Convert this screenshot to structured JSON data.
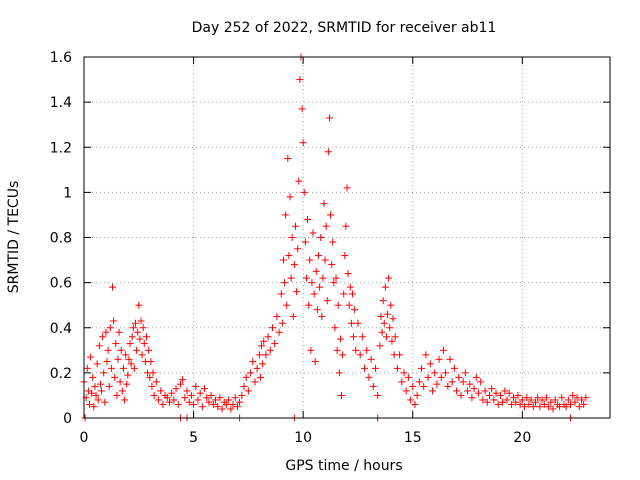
{
  "chart_data": {
    "type": "scatter",
    "title": "Day 252 of 2022, SRMTID for receiver ab11",
    "xlabel": "GPS time / hours",
    "ylabel": "SRMTID / TECUs",
    "xlim": [
      0,
      24
    ],
    "ylim": [
      0,
      1.6
    ],
    "xticks": [
      0,
      5,
      10,
      15,
      20
    ],
    "xtick_labels": [
      "0",
      "5",
      "10",
      "15",
      "20"
    ],
    "yticks": [
      0,
      0.2,
      0.4,
      0.6,
      0.8,
      1,
      1.2,
      1.4,
      1.6
    ],
    "ytick_labels": [
      "0",
      "0.2",
      "0.4",
      "0.6",
      "0.8",
      "1",
      "1.2",
      "1.4",
      "1.6"
    ],
    "grid": true,
    "marker": "+",
    "series": [
      {
        "name": "SRMTID",
        "color": "#ff0000",
        "points": [
          [
            0.0,
            0.16
          ],
          [
            0.1,
            0.09
          ],
          [
            0.15,
            0.22
          ],
          [
            0.2,
            0.12
          ],
          [
            0.25,
            0.06
          ],
          [
            0.3,
            0.27
          ],
          [
            0.35,
            0.11
          ],
          [
            0.4,
            0.18
          ],
          [
            0.45,
            0.05
          ],
          [
            0.5,
            0.14
          ],
          [
            0.55,
            0.1
          ],
          [
            0.6,
            0.24
          ],
          [
            0.65,
            0.08
          ],
          [
            0.7,
            0.32
          ],
          [
            0.75,
            0.15
          ],
          [
            0.8,
            0.12
          ],
          [
            0.85,
            0.36
          ],
          [
            0.9,
            0.2
          ],
          [
            0.95,
            0.07
          ],
          [
            1.0,
            0.38
          ],
          [
            1.05,
            0.25
          ],
          [
            1.1,
            0.3
          ],
          [
            1.15,
            0.14
          ],
          [
            1.2,
            0.4
          ],
          [
            1.25,
            0.22
          ],
          [
            1.3,
            0.58
          ],
          [
            1.35,
            0.43
          ],
          [
            1.4,
            0.18
          ],
          [
            1.45,
            0.33
          ],
          [
            1.5,
            0.1
          ],
          [
            1.55,
            0.26
          ],
          [
            1.6,
            0.38
          ],
          [
            1.65,
            0.16
          ],
          [
            1.7,
            0.3
          ],
          [
            1.75,
            0.12
          ],
          [
            1.8,
            0.22
          ],
          [
            1.85,
            0.08
          ],
          [
            1.9,
            0.28
          ],
          [
            1.95,
            0.15
          ],
          [
            2.0,
            0.19
          ],
          [
            2.05,
            0.26
          ],
          [
            2.1,
            0.33
          ],
          [
            2.15,
            0.24
          ],
          [
            2.2,
            0.36
          ],
          [
            2.25,
            0.4
          ],
          [
            2.3,
            0.22
          ],
          [
            2.35,
            0.42
          ],
          [
            2.4,
            0.3
          ],
          [
            2.45,
            0.38
          ],
          [
            2.5,
            0.5
          ],
          [
            2.55,
            0.35
          ],
          [
            2.6,
            0.43
          ],
          [
            2.65,
            0.28
          ],
          [
            2.7,
            0.4
          ],
          [
            2.75,
            0.33
          ],
          [
            2.8,
            0.25
          ],
          [
            2.85,
            0.36
          ],
          [
            2.9,
            0.2
          ],
          [
            2.95,
            0.3
          ],
          [
            3.0,
            0.18
          ],
          [
            3.05,
            0.25
          ],
          [
            3.1,
            0.14
          ],
          [
            3.15,
            0.2
          ],
          [
            3.2,
            0.1
          ],
          [
            3.3,
            0.16
          ],
          [
            3.4,
            0.08
          ],
          [
            3.5,
            0.12
          ],
          [
            3.6,
            0.06
          ],
          [
            3.7,
            0.1
          ],
          [
            3.8,
            0.09
          ],
          [
            3.9,
            0.07
          ],
          [
            4.0,
            0.11
          ],
          [
            4.1,
            0.08
          ],
          [
            4.2,
            0.13
          ],
          [
            4.3,
            0.06
          ],
          [
            4.4,
            0.15
          ],
          [
            4.5,
            0.17
          ],
          [
            4.6,
            0.09
          ],
          [
            4.7,
            0.12
          ],
          [
            4.8,
            0.07
          ],
          [
            4.9,
            0.1
          ],
          [
            5.0,
            0.06
          ],
          [
            5.1,
            0.14
          ],
          [
            5.2,
            0.08
          ],
          [
            5.3,
            0.11
          ],
          [
            5.4,
            0.05
          ],
          [
            5.5,
            0.13
          ],
          [
            5.6,
            0.09
          ],
          [
            5.7,
            0.07
          ],
          [
            5.8,
            0.1
          ],
          [
            5.9,
            0.06
          ],
          [
            6.0,
            0.08
          ],
          [
            6.1,
            0.05
          ],
          [
            6.2,
            0.09
          ],
          [
            6.3,
            0.04
          ],
          [
            6.4,
            0.07
          ],
          [
            6.5,
            0.06
          ],
          [
            6.6,
            0.08
          ],
          [
            6.7,
            0.04
          ],
          [
            6.8,
            0.06
          ],
          [
            6.9,
            0.09
          ],
          [
            7.0,
            0.05
          ],
          [
            7.1,
            0.07
          ],
          [
            7.2,
            0.1
          ],
          [
            7.3,
            0.14
          ],
          [
            7.4,
            0.18
          ],
          [
            7.5,
            0.12
          ],
          [
            7.6,
            0.2
          ],
          [
            7.7,
            0.25
          ],
          [
            7.8,
            0.16
          ],
          [
            7.9,
            0.22
          ],
          [
            8.0,
            0.28
          ],
          [
            8.05,
            0.18
          ],
          [
            8.1,
            0.32
          ],
          [
            8.15,
            0.24
          ],
          [
            8.2,
            0.34
          ],
          [
            8.3,
            0.28
          ],
          [
            8.4,
            0.36
          ],
          [
            8.5,
            0.3
          ],
          [
            8.6,
            0.4
          ],
          [
            8.7,
            0.33
          ],
          [
            8.8,
            0.45
          ],
          [
            8.9,
            0.38
          ],
          [
            9.0,
            0.55
          ],
          [
            9.05,
            0.42
          ],
          [
            9.1,
            0.7
          ],
          [
            9.15,
            0.6
          ],
          [
            9.2,
            0.9
          ],
          [
            9.25,
            0.5
          ],
          [
            9.3,
            1.15
          ],
          [
            9.35,
            0.72
          ],
          [
            9.4,
            0.98
          ],
          [
            9.45,
            0.62
          ],
          [
            9.5,
            0.8
          ],
          [
            9.55,
            0.45
          ],
          [
            9.6,
            0.68
          ],
          [
            9.65,
            0.85
          ],
          [
            9.7,
            0.56
          ],
          [
            9.75,
            0.75
          ],
          [
            9.8,
            1.05
          ],
          [
            9.85,
            1.5
          ],
          [
            9.9,
            1.6
          ],
          [
            9.95,
            1.37
          ],
          [
            10.0,
            1.22
          ],
          [
            10.05,
            1.0
          ],
          [
            10.1,
            0.78
          ],
          [
            10.15,
            0.62
          ],
          [
            10.2,
            0.88
          ],
          [
            10.25,
            0.5
          ],
          [
            10.3,
            0.7
          ],
          [
            10.35,
            0.3
          ],
          [
            10.4,
            0.6
          ],
          [
            10.45,
            0.82
          ],
          [
            10.5,
            0.55
          ],
          [
            10.55,
            0.25
          ],
          [
            10.6,
            0.65
          ],
          [
            10.65,
            0.48
          ],
          [
            10.7,
            0.72
          ],
          [
            10.75,
            0.58
          ],
          [
            10.8,
            0.8
          ],
          [
            10.85,
            0.45
          ],
          [
            10.9,
            0.62
          ],
          [
            10.95,
            0.95
          ],
          [
            11.0,
            0.7
          ],
          [
            11.05,
            0.85
          ],
          [
            11.1,
            0.52
          ],
          [
            11.15,
            1.18
          ],
          [
            11.2,
            1.33
          ],
          [
            11.25,
            0.9
          ],
          [
            11.3,
            0.68
          ],
          [
            11.35,
            0.78
          ],
          [
            11.4,
            0.6
          ],
          [
            11.45,
            0.4
          ],
          [
            11.5,
            0.62
          ],
          [
            11.55,
            0.3
          ],
          [
            11.6,
            0.5
          ],
          [
            11.65,
            0.2
          ],
          [
            11.7,
            0.35
          ],
          [
            11.75,
            0.1
          ],
          [
            11.8,
            0.28
          ],
          [
            11.85,
            0.55
          ],
          [
            11.9,
            0.72
          ],
          [
            11.95,
            0.85
          ],
          [
            12.0,
            1.02
          ],
          [
            12.05,
            0.64
          ],
          [
            12.1,
            0.5
          ],
          [
            12.15,
            0.58
          ],
          [
            12.2,
            0.42
          ],
          [
            12.25,
            0.55
          ],
          [
            12.3,
            0.36
          ],
          [
            12.35,
            0.48
          ],
          [
            12.4,
            0.3
          ],
          [
            12.5,
            0.42
          ],
          [
            12.6,
            0.28
          ],
          [
            12.7,
            0.36
          ],
          [
            12.8,
            0.22
          ],
          [
            12.9,
            0.3
          ],
          [
            13.0,
            0.18
          ],
          [
            13.1,
            0.26
          ],
          [
            13.2,
            0.14
          ],
          [
            13.3,
            0.22
          ],
          [
            13.4,
            0.1
          ],
          [
            13.5,
            0.32
          ],
          [
            13.55,
            0.45
          ],
          [
            13.6,
            0.38
          ],
          [
            13.65,
            0.52
          ],
          [
            13.7,
            0.42
          ],
          [
            13.75,
            0.58
          ],
          [
            13.8,
            0.36
          ],
          [
            13.85,
            0.46
          ],
          [
            13.9,
            0.62
          ],
          [
            13.95,
            0.4
          ],
          [
            14.0,
            0.5
          ],
          [
            14.05,
            0.34
          ],
          [
            14.1,
            0.44
          ],
          [
            14.15,
            0.28
          ],
          [
            14.2,
            0.36
          ],
          [
            14.3,
            0.22
          ],
          [
            14.4,
            0.28
          ],
          [
            14.5,
            0.16
          ],
          [
            14.6,
            0.2
          ],
          [
            14.7,
            0.12
          ],
          [
            14.8,
            0.18
          ],
          [
            14.9,
            0.08
          ],
          [
            15.0,
            0.14
          ],
          [
            15.1,
            0.06
          ],
          [
            15.2,
            0.1
          ],
          [
            15.3,
            0.16
          ],
          [
            15.4,
            0.22
          ],
          [
            15.5,
            0.14
          ],
          [
            15.6,
            0.28
          ],
          [
            15.7,
            0.18
          ],
          [
            15.8,
            0.24
          ],
          [
            15.9,
            0.12
          ],
          [
            16.0,
            0.2
          ],
          [
            16.1,
            0.15
          ],
          [
            16.2,
            0.26
          ],
          [
            16.3,
            0.18
          ],
          [
            16.4,
            0.3
          ],
          [
            16.5,
            0.2
          ],
          [
            16.6,
            0.14
          ],
          [
            16.7,
            0.26
          ],
          [
            16.8,
            0.16
          ],
          [
            16.9,
            0.22
          ],
          [
            17.0,
            0.12
          ],
          [
            17.1,
            0.18
          ],
          [
            17.2,
            0.1
          ],
          [
            17.3,
            0.16
          ],
          [
            17.4,
            0.2
          ],
          [
            17.5,
            0.12
          ],
          [
            17.6,
            0.15
          ],
          [
            17.7,
            0.09
          ],
          [
            17.8,
            0.13
          ],
          [
            17.9,
            0.18
          ],
          [
            18.0,
            0.11
          ],
          [
            18.1,
            0.16
          ],
          [
            18.2,
            0.08
          ],
          [
            18.3,
            0.12
          ],
          [
            18.4,
            0.07
          ],
          [
            18.5,
            0.1
          ],
          [
            18.6,
            0.13
          ],
          [
            18.7,
            0.08
          ],
          [
            18.8,
            0.11
          ],
          [
            18.9,
            0.06
          ],
          [
            19.0,
            0.1
          ],
          [
            19.1,
            0.07
          ],
          [
            19.2,
            0.12
          ],
          [
            19.3,
            0.08
          ],
          [
            19.4,
            0.11
          ],
          [
            19.5,
            0.06
          ],
          [
            19.6,
            0.09
          ],
          [
            19.7,
            0.07
          ],
          [
            19.8,
            0.1
          ],
          [
            19.9,
            0.06
          ],
          [
            20.0,
            0.08
          ],
          [
            20.1,
            0.05
          ],
          [
            20.2,
            0.09
          ],
          [
            20.3,
            0.06
          ],
          [
            20.4,
            0.08
          ],
          [
            20.5,
            0.05
          ],
          [
            20.6,
            0.07
          ],
          [
            20.7,
            0.09
          ],
          [
            20.8,
            0.05
          ],
          [
            20.9,
            0.08
          ],
          [
            21.0,
            0.06
          ],
          [
            21.1,
            0.09
          ],
          [
            21.2,
            0.05
          ],
          [
            21.3,
            0.07
          ],
          [
            21.4,
            0.04
          ],
          [
            21.5,
            0.08
          ],
          [
            21.6,
            0.06
          ],
          [
            21.7,
            0.05
          ],
          [
            21.8,
            0.09
          ],
          [
            21.9,
            0.06
          ],
          [
            22.0,
            0.05
          ],
          [
            22.1,
            0.08
          ],
          [
            22.2,
            0.06
          ],
          [
            22.3,
            0.1
          ],
          [
            22.4,
            0.07
          ],
          [
            22.5,
            0.09
          ],
          [
            22.6,
            0.05
          ],
          [
            22.7,
            0.08
          ],
          [
            22.8,
            0.06
          ],
          [
            22.9,
            0.09
          ]
        ]
      }
    ],
    "axis_points": [
      [
        0.05,
        0
      ],
      [
        4.4,
        0
      ],
      [
        4.7,
        0
      ],
      [
        7.1,
        0
      ],
      [
        9.6,
        0
      ],
      [
        13.4,
        0
      ],
      [
        22.2,
        0
      ]
    ]
  }
}
